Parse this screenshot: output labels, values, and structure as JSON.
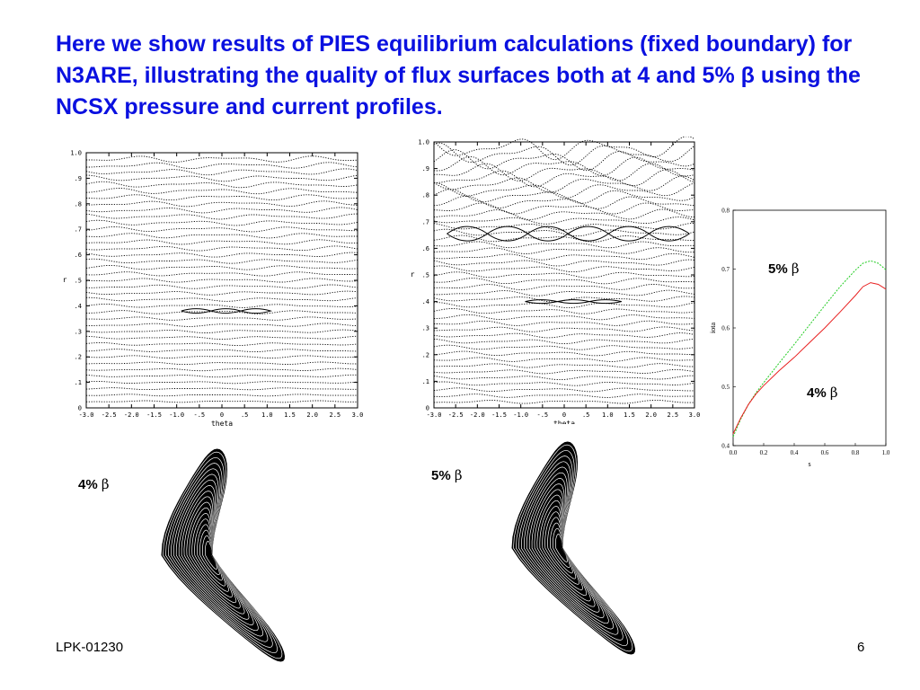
{
  "slide": {
    "title": "Here we show results of PIES equilibrium calculations (fixed boundary) for N3ARE, illustrating the quality of flux surfaces both at 4 and 5% β using the NCSX pressure and current profiles.",
    "footer_left": "LPK-01230",
    "page_number": "6"
  },
  "surface_plots": [
    {
      "beta_label": "4%",
      "x_label": "theta",
      "y_label": "r",
      "x_ticks": [
        "-3.0",
        "-2.5",
        "-2.0",
        "-1.5",
        "-1.0",
        "-.5",
        "0",
        ".5",
        "1.0",
        "1.5",
        "2.0",
        "2.5",
        "3.0"
      ],
      "y_ticks": [
        "0",
        ".1",
        ".2",
        ".3",
        ".4",
        ".5",
        ".6",
        ".7",
        ".8",
        ".9",
        "1.0"
      ]
    },
    {
      "beta_label": "5%",
      "x_label": "theta",
      "y_label": "r",
      "x_ticks": [
        "-3.0",
        "-2.5",
        "-2.0",
        "-1.5",
        "-1.0",
        "-.5",
        "0",
        ".5",
        "1.0",
        "1.5",
        "2.0",
        "2.5",
        "3.0"
      ],
      "y_ticks": [
        "0",
        ".1",
        ".2",
        ".3",
        ".4",
        ".5",
        ".6",
        ".7",
        ".8",
        ".9",
        "1.0"
      ]
    }
  ],
  "cross_sections": [
    {
      "label": "4%"
    },
    {
      "label": "5%"
    }
  ],
  "beta_symbol": "β",
  "chart_data": {
    "type": "line",
    "xlabel": "s",
    "ylabel": "iota",
    "xlim": [
      0.0,
      1.0
    ],
    "ylim": [
      0.4,
      0.8
    ],
    "x_ticks": [
      "0.0",
      "0.2",
      "0.4",
      "0.6",
      "0.8",
      "1.0"
    ],
    "y_ticks": [
      "0.4",
      "0.5",
      "0.6",
      "0.7",
      "0.8"
    ],
    "grid": false,
    "series": [
      {
        "name": "5%",
        "color": "#22cc22",
        "dashed": true,
        "x": [
          0.0,
          0.05,
          0.1,
          0.15,
          0.2,
          0.3,
          0.4,
          0.5,
          0.6,
          0.7,
          0.8,
          0.85,
          0.9,
          0.95,
          1.0
        ],
        "y": [
          0.415,
          0.445,
          0.47,
          0.49,
          0.507,
          0.54,
          0.572,
          0.605,
          0.638,
          0.67,
          0.698,
          0.71,
          0.714,
          0.71,
          0.699
        ]
      },
      {
        "name": "4%",
        "color": "#e82020",
        "dashed": false,
        "x": [
          0.0,
          0.05,
          0.1,
          0.15,
          0.2,
          0.3,
          0.4,
          0.5,
          0.6,
          0.7,
          0.8,
          0.85,
          0.9,
          0.95,
          1.0
        ],
        "y": [
          0.42,
          0.447,
          0.47,
          0.488,
          0.502,
          0.527,
          0.55,
          0.575,
          0.6,
          0.627,
          0.655,
          0.67,
          0.677,
          0.674,
          0.666
        ]
      }
    ]
  }
}
